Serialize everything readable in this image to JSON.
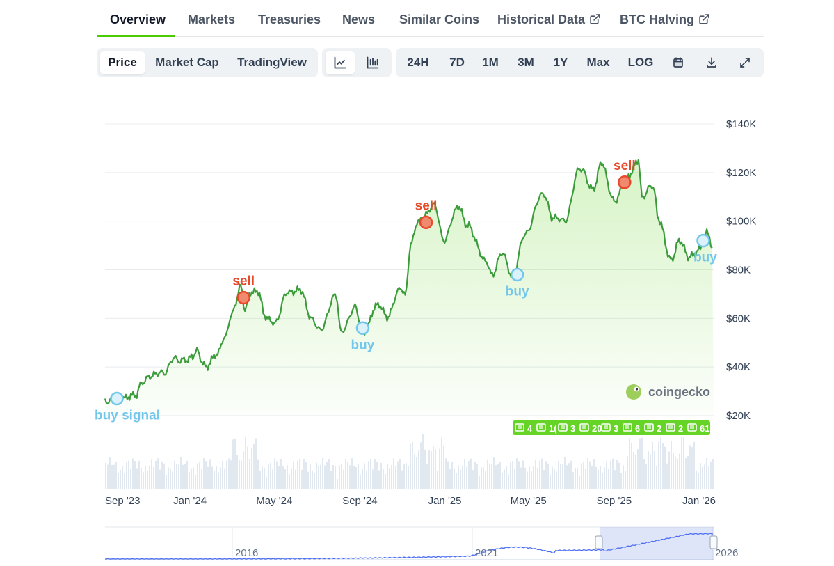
{
  "tabs": [
    {
      "label": "Overview",
      "active": true
    },
    {
      "label": "Markets"
    },
    {
      "label": "Treasuries"
    },
    {
      "label": "News"
    },
    {
      "label": "Similar Coins"
    },
    {
      "label": "Historical Data",
      "icon": "external-link-icon"
    },
    {
      "label": "BTC Halving",
      "icon": "external-link-icon"
    }
  ],
  "toolbar": {
    "view_tabs": [
      "Price",
      "Market Cap",
      "TradingView"
    ],
    "active_view": "Price",
    "chart_type_icons": [
      "line-chart-icon",
      "candlestick-chart-icon"
    ],
    "ranges": [
      "24H",
      "7D",
      "1M",
      "3M",
      "1Y",
      "Max",
      "LOG"
    ],
    "tool_icons": [
      "calendar-icon",
      "download-icon",
      "fullscreen-icon"
    ]
  },
  "watermark": {
    "text": "coingecko",
    "icon": "gecko-logo-icon"
  },
  "navigator": {
    "labels": [
      "2016",
      "2021",
      "2026"
    ]
  },
  "news_badges": [
    "4",
    "1(",
    "3",
    "20",
    "3",
    "6",
    "2",
    "2",
    "61"
  ],
  "colors": {
    "accent": "#4bcc00",
    "line": "#3c9c3c",
    "buy": "#74c7ec",
    "sell": "#e8492a"
  },
  "chart_data": {
    "type": "line",
    "series": [
      {
        "values": [
          [
            "2023-09-01",
            26000
          ],
          [
            "2023-09-15",
            26500
          ],
          [
            "2023-10-01",
            27500
          ],
          [
            "2023-10-15",
            28500
          ],
          [
            "2023-10-25",
            34000
          ],
          [
            "2023-11-10",
            37000
          ],
          [
            "2023-11-25",
            37500
          ],
          [
            "2023-12-08",
            43500
          ],
          [
            "2023-12-20",
            42500
          ],
          [
            "2024-01-05",
            44000
          ],
          [
            "2024-01-11",
            46500
          ],
          [
            "2024-01-23",
            40000
          ],
          [
            "2024-02-08",
            45000
          ],
          [
            "2024-02-20",
            52000
          ],
          [
            "2024-02-29",
            61000
          ],
          [
            "2024-03-14",
            73000
          ],
          [
            "2024-03-20",
            63000
          ],
          [
            "2024-03-28",
            70500
          ],
          [
            "2024-04-08",
            71500
          ],
          [
            "2024-04-17",
            61000
          ],
          [
            "2024-05-01",
            58000
          ],
          [
            "2024-05-21",
            71000
          ],
          [
            "2024-06-07",
            71500
          ],
          [
            "2024-06-24",
            60000
          ],
          [
            "2024-07-05",
            55000
          ],
          [
            "2024-07-29",
            69500
          ],
          [
            "2024-08-05",
            54000
          ],
          [
            "2024-08-25",
            64500
          ],
          [
            "2024-09-06",
            54000
          ],
          [
            "2024-09-27",
            66000
          ],
          [
            "2024-10-10",
            60500
          ],
          [
            "2024-10-29",
            72500
          ],
          [
            "2024-11-05",
            69500
          ],
          [
            "2024-11-13",
            90500
          ],
          [
            "2024-11-22",
            99000
          ],
          [
            "2024-12-05",
            103000
          ],
          [
            "2024-12-17",
            107000
          ],
          [
            "2024-12-30",
            92000
          ],
          [
            "2025-01-20",
            106000
          ],
          [
            "2025-02-03",
            98000
          ],
          [
            "2025-02-28",
            84000
          ],
          [
            "2025-03-10",
            78000
          ],
          [
            "2025-03-25",
            87000
          ],
          [
            "2025-04-08",
            76500
          ],
          [
            "2025-04-25",
            94000
          ],
          [
            "2025-05-22",
            111500
          ],
          [
            "2025-06-05",
            101500
          ],
          [
            "2025-06-22",
            100000
          ],
          [
            "2025-07-14",
            122000
          ],
          [
            "2025-08-02",
            113000
          ],
          [
            "2025-08-14",
            124000
          ],
          [
            "2025-09-01",
            108000
          ],
          [
            "2025-09-18",
            117000
          ],
          [
            "2025-10-06",
            125000
          ],
          [
            "2025-10-11",
            110000
          ],
          [
            "2025-10-27",
            115000
          ],
          [
            "2025-11-04",
            101000
          ],
          [
            "2025-11-21",
            84000
          ],
          [
            "2025-12-05",
            92000
          ],
          [
            "2025-12-18",
            85000
          ],
          [
            "2026-01-01",
            88000
          ],
          [
            "2026-01-14",
            96000
          ],
          [
            "2026-01-20",
            89000
          ]
        ]
      }
    ],
    "signals": [
      {
        "label": "buy signal",
        "type": "buy",
        "date": "2023-09-18",
        "price": 27000
      },
      {
        "label": "sell",
        "type": "sell",
        "date": "2024-03-18",
        "price": 68500
      },
      {
        "label": "buy",
        "type": "buy",
        "date": "2024-09-05",
        "price": 56000
      },
      {
        "label": "sell",
        "type": "sell",
        "date": "2024-12-05",
        "price": 99500
      },
      {
        "label": "buy",
        "type": "buy",
        "date": "2025-04-15",
        "price": 78000
      },
      {
        "label": "sell",
        "type": "sell",
        "date": "2025-09-16",
        "price": 116000
      },
      {
        "label": "buy",
        "type": "buy",
        "date": "2026-01-07",
        "price": 92000
      }
    ],
    "x_ticks": [
      "Sep '23",
      "Jan '24",
      "May '24",
      "Sep '24",
      "Jan '25",
      "May '25",
      "Sep '25",
      "Jan '26"
    ],
    "y_ticks": [
      "$20K",
      "$40K",
      "$60K",
      "$80K",
      "$100K",
      "$120K",
      "$140K"
    ],
    "ylim": [
      20000,
      140000
    ],
    "xlim": [
      "2023-09-01",
      "2026-01-22"
    ],
    "grid": true
  }
}
